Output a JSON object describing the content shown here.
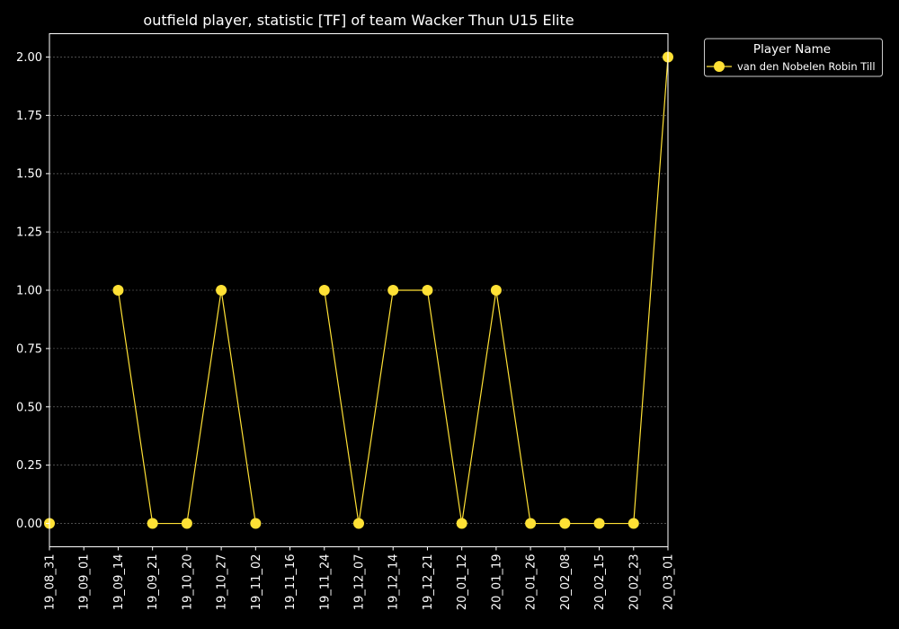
{
  "chart_data": {
    "type": "line",
    "title": "outfield player, statistic [TF] of team Wacker Thun U15 Elite",
    "xlabel": "",
    "ylabel": "",
    "categories": [
      "19_08_31",
      "19_09_01",
      "19_09_14",
      "19_09_21",
      "19_10_20",
      "19_10_27",
      "19_11_02",
      "19_11_16",
      "19_11_24",
      "19_12_07",
      "19_12_14",
      "19_12_21",
      "20_01_12",
      "20_01_19",
      "20_01_26",
      "20_02_08",
      "20_02_15",
      "20_02_23",
      "20_03_01"
    ],
    "y_ticks": [
      "0.00",
      "0.25",
      "0.50",
      "0.75",
      "1.00",
      "1.25",
      "1.50",
      "1.75",
      "2.00"
    ],
    "ylim": [
      -0.1,
      2.1
    ],
    "grid": true,
    "legend_placement": "outside-top-right",
    "legend_title": "Player Name",
    "series": [
      {
        "name": "van den Nobelen Robin Till",
        "color": "#ffe135",
        "values": [
          0,
          null,
          1,
          0,
          0,
          1,
          0,
          null,
          1,
          0,
          1,
          1,
          0,
          1,
          0,
          0,
          0,
          0,
          2
        ]
      }
    ]
  }
}
